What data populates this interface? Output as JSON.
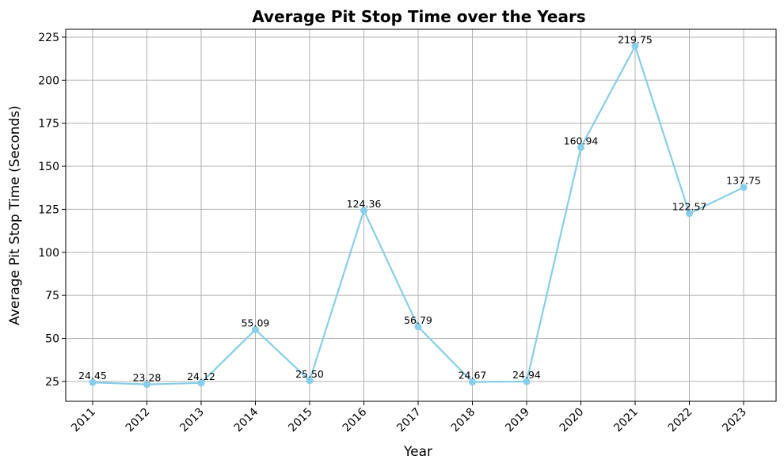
{
  "chart_data": {
    "type": "line",
    "title": "Average Pit Stop Time over the Years",
    "xlabel": "Year",
    "ylabel": "Average Pit Stop Time (Seconds)",
    "categories": [
      "2011",
      "2012",
      "2013",
      "2014",
      "2015",
      "2016",
      "2017",
      "2018",
      "2019",
      "2020",
      "2021",
      "2022",
      "2023"
    ],
    "values": [
      24.45,
      23.28,
      24.12,
      55.09,
      25.5,
      124.36,
      56.79,
      24.67,
      24.94,
      160.94,
      219.75,
      122.57,
      137.75
    ],
    "data_labels": [
      "24.45",
      "23.28",
      "24.12",
      "55.09",
      "25.50",
      "124.36",
      "56.79",
      "24.67",
      "24.94",
      "160.94",
      "219.75",
      "122.57",
      "137.75"
    ],
    "yticks": [
      25,
      50,
      75,
      100,
      125,
      150,
      175,
      200,
      225
    ],
    "ylim": [
      13.46,
      229.57
    ],
    "grid": true,
    "line_color": "#87ceeb",
    "marker": "circle"
  }
}
